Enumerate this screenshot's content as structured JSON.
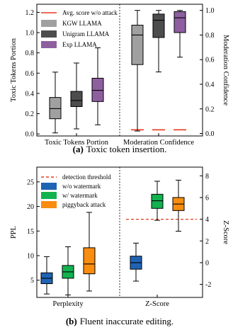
{
  "chart_data": [
    {
      "type": "box",
      "caption_label": "(a)",
      "caption_text": "Toxic token insertion.",
      "categories": [
        "Toxic Tokens Portion",
        "Moderation Confidence"
      ],
      "ylabel_left": "Toxic Tokens Portion",
      "ylabel_right": "Moderation Confidence",
      "ylim_left": [
        -0.02,
        1.28
      ],
      "yticks_left": [
        0.0,
        0.2,
        0.4,
        0.6,
        0.8,
        1.0,
        1.2
      ],
      "ylim_right": [
        -0.02,
        1.05
      ],
      "yticks_right": [
        0.0,
        0.2,
        0.4,
        0.6,
        0.8,
        1.0
      ],
      "legend_position": "top-left",
      "colors": {
        "KGW LLAMA": "#a0a0a0",
        "Unigram LLAMA": "#4d4d4d",
        "Exp LLAMA": "#8e5f9f",
        "ref": "#e8391f"
      },
      "reference_line": {
        "name": "Avg. score w/o attack",
        "values": [
          0.03,
          0.03,
          0.03
        ],
        "style": "solid"
      },
      "series": [
        {
          "name": "KGW LLAMA",
          "boxes": [
            {
              "min": 0.01,
              "q1": 0.15,
              "median": 0.25,
              "q3": 0.36,
              "max": 0.61
            },
            {
              "min": 0.02,
              "q1": 0.56,
              "median": 0.8,
              "q3": 0.88,
              "max": 1.0
            }
          ]
        },
        {
          "name": "Unigram LLAMA",
          "boxes": [
            {
              "min": 0.05,
              "q1": 0.27,
              "median": 0.33,
              "q3": 0.42,
              "max": 0.7
            },
            {
              "min": 0.5,
              "q1": 0.78,
              "median": 0.92,
              "q3": 0.97,
              "max": 1.0
            }
          ]
        },
        {
          "name": "Exp LLAMA",
          "boxes": [
            {
              "min": 0.09,
              "q1": 0.32,
              "median": 0.43,
              "q3": 0.55,
              "max": 0.85
            },
            {
              "min": 0.62,
              "q1": 0.82,
              "median": 0.94,
              "q3": 0.99,
              "max": 1.0
            }
          ]
        }
      ]
    },
    {
      "type": "box",
      "caption_label": "(b)",
      "caption_text": "Fluent inaccurate editing.",
      "categories": [
        "Perplexity",
        "Z-Score"
      ],
      "ylabel_left": "PPL",
      "ylabel_right": "Z-Score",
      "ylim_left": [
        1.5,
        28
      ],
      "yticks_left": [
        5,
        10,
        15,
        20,
        25
      ],
      "ylim_right": [
        -3.2,
        8.8
      ],
      "yticks_right": [
        -2,
        0,
        2,
        4,
        6,
        8
      ],
      "legend_position": "top-left",
      "colors": {
        "w/o watermark": "#1f64b4",
        "w/ watermark": "#12b24f",
        "piggyback attack": "#fa8c0f",
        "ref": "#e8391f"
      },
      "reference_line": {
        "name": "detection threshold",
        "value": 4,
        "style": "dashed"
      },
      "series": [
        {
          "name": "w/o watermark",
          "boxes": [
            {
              "min": 2.2,
              "q1": 4.3,
              "median": 5.4,
              "q3": 6.5,
              "max": 9.8
            },
            {
              "min": -1.7,
              "q1": -0.6,
              "median": 0.0,
              "q3": 0.6,
              "max": 1.8
            }
          ]
        },
        {
          "name": "w/ watermark",
          "boxes": [
            {
              "min": 2.0,
              "q1": 5.4,
              "median": 6.7,
              "q3": 8.0,
              "max": 11.8
            },
            {
              "min": 3.9,
              "q1": 5.0,
              "median": 5.7,
              "q3": 6.3,
              "max": 7.5
            }
          ]
        },
        {
          "name": "piggyback attack",
          "boxes": [
            {
              "min": 2.8,
              "q1": 6.3,
              "median": 8.3,
              "q3": 11.6,
              "max": 18.8
            },
            {
              "min": 2.9,
              "q1": 4.8,
              "median": 5.4,
              "q3": 6.0,
              "max": 7.6
            }
          ]
        }
      ]
    }
  ]
}
